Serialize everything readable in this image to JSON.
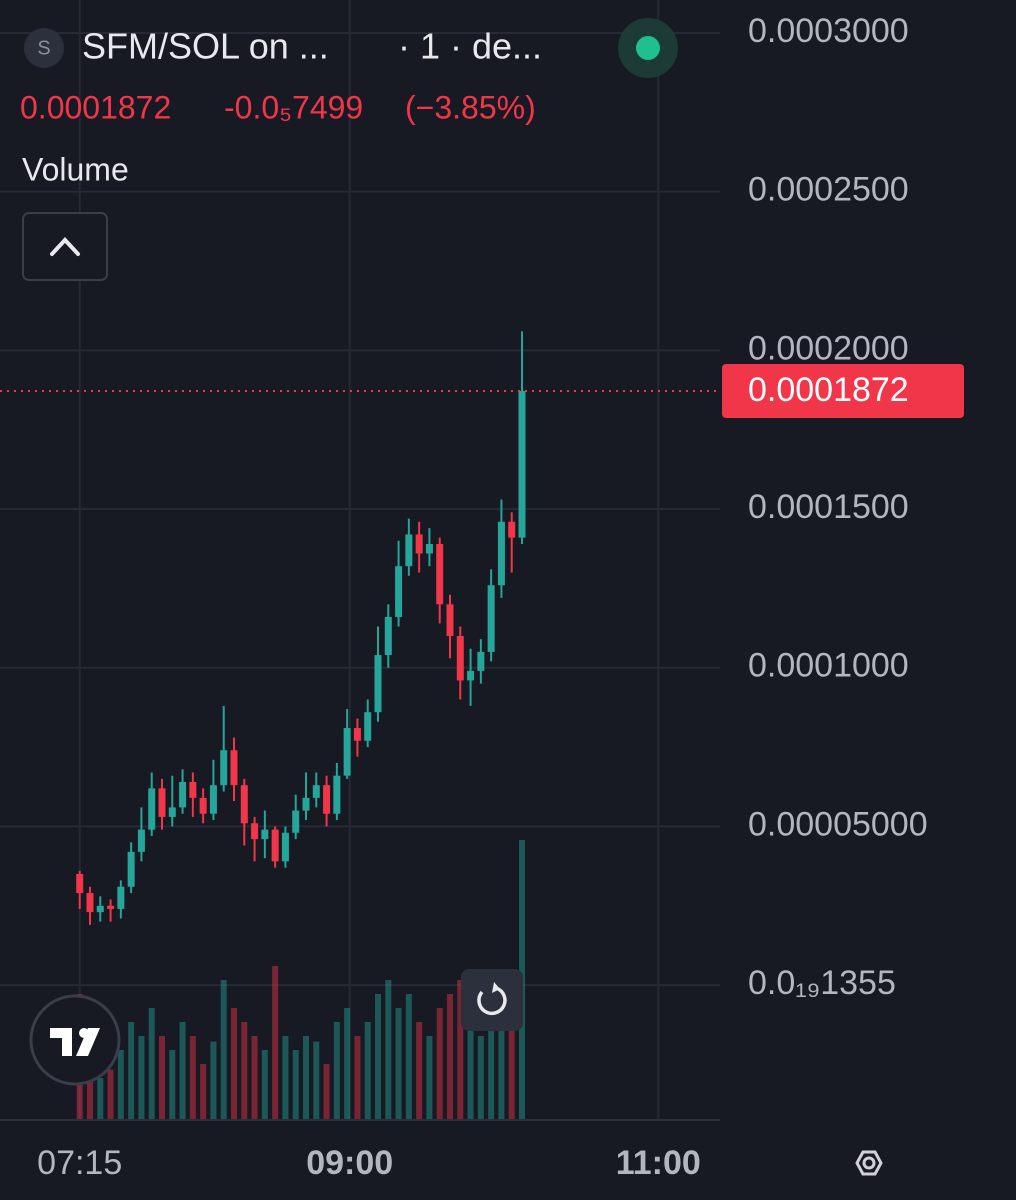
{
  "chart_data": {
    "type": "candlestick",
    "title": "SFM/SOL on ...",
    "interval": "· 1 · de...",
    "symbol_icon": "S",
    "last_price": {
      "value": 0.0001872,
      "label": "0.0001872"
    },
    "change": "-0.0₅7499",
    "change_pct": "(−3.85%)",
    "volume_label": "Volume",
    "up_color": "#26a69a",
    "down_color": "#f2364a",
    "grid": true,
    "x": [
      "07:15",
      "07:19",
      "07:23",
      "07:27",
      "07:31",
      "07:35",
      "07:39",
      "07:43",
      "07:47",
      "07:51",
      "07:55",
      "07:59",
      "08:03",
      "08:07",
      "08:11",
      "08:15",
      "08:19",
      "08:23",
      "08:27",
      "08:31",
      "08:35",
      "08:39",
      "08:43",
      "08:47",
      "08:51",
      "08:55",
      "08:59",
      "09:03",
      "09:07",
      "09:11",
      "09:15",
      "09:19",
      "09:23",
      "09:27",
      "09:31",
      "09:35",
      "09:39",
      "09:43",
      "09:47",
      "09:51",
      "09:55",
      "09:59",
      "10:03",
      "10:07"
    ],
    "open": [
      3.5e-05,
      2.9e-05,
      2.3e-05,
      2.5e-05,
      2.4e-05,
      3.1e-05,
      4.2e-05,
      4.9e-05,
      6.2e-05,
      5.3e-05,
      5.6e-05,
      6.4e-05,
      5.9e-05,
      5.4e-05,
      6.3e-05,
      7.4e-05,
      6.3e-05,
      5.1e-05,
      4.6e-05,
      4.9e-05,
      3.9e-05,
      4.8e-05,
      5.5e-05,
      5.9e-05,
      6.3e-05,
      5.4e-05,
      6.6e-05,
      8.1e-05,
      7.7e-05,
      8.6e-05,
      0.000104,
      0.000116,
      0.000132,
      0.000142,
      0.000136,
      0.000139,
      0.00012,
      0.00011,
      9.6e-05,
      9.9e-05,
      0.000105,
      0.000126,
      0.000146,
      0.000141
    ],
    "high": [
      3.6e-05,
      3.1e-05,
      2.8e-05,
      2.7e-05,
      3.3e-05,
      4.5e-05,
      5.6e-05,
      6.7e-05,
      6.5e-05,
      6.6e-05,
      6.8e-05,
      6.7e-05,
      6.2e-05,
      7.1e-05,
      8.8e-05,
      7.8e-05,
      6.5e-05,
      5.3e-05,
      5.5e-05,
      5e-05,
      5e-05,
      6e-05,
      6.7e-05,
      6.7e-05,
      6.6e-05,
      7e-05,
      8.7e-05,
      8.4e-05,
      9e-05,
      0.000113,
      0.00012,
      0.00014,
      0.000147,
      0.000146,
      0.000144,
      0.000141,
      0.000123,
      0.000113,
      0.000106,
      0.000109,
      0.000131,
      0.000153,
      0.000149,
      0.000206
    ],
    "low": [
      2.4e-05,
      1.9e-05,
      2e-05,
      2e-05,
      2.1e-05,
      2.9e-05,
      3.9e-05,
      4.7e-05,
      4.9e-05,
      5e-05,
      5.4e-05,
      5.3e-05,
      5.1e-05,
      5.2e-05,
      6.1e-05,
      5.8e-05,
      4.4e-05,
      3.9e-05,
      4e-05,
      3.7e-05,
      3.7e-05,
      4.6e-05,
      5.2e-05,
      5.6e-05,
      5e-05,
      5.2e-05,
      6.5e-05,
      7.2e-05,
      7.5e-05,
      8.3e-05,
      0.0001,
      0.000113,
      0.000129,
      0.00013,
      0.000132,
      0.000114,
      0.000103,
      9e-05,
      8.8e-05,
      9.5e-05,
      0.000102,
      0.000122,
      0.00013,
      0.000139
    ],
    "close": [
      2.9e-05,
      2.3e-05,
      2.5e-05,
      2.4e-05,
      3.1e-05,
      4.2e-05,
      4.9e-05,
      6.2e-05,
      5.3e-05,
      5.6e-05,
      6.4e-05,
      5.9e-05,
      5.4e-05,
      6.3e-05,
      7.4e-05,
      6.3e-05,
      5.1e-05,
      4.6e-05,
      4.9e-05,
      3.9e-05,
      4.8e-05,
      5.5e-05,
      5.9e-05,
      6.3e-05,
      5.4e-05,
      6.6e-05,
      8.1e-05,
      7.7e-05,
      8.6e-05,
      0.000104,
      0.000116,
      0.000132,
      0.000142,
      0.000136,
      0.000139,
      0.00012,
      0.00011,
      9.6e-05,
      9.9e-05,
      0.000105,
      0.000126,
      0.000146,
      0.000141,
      0.0001872
    ],
    "volume": [
      45,
      20,
      15,
      18,
      25,
      35,
      30,
      40,
      30,
      25,
      35,
      30,
      20,
      28,
      50,
      40,
      35,
      30,
      25,
      55,
      30,
      25,
      30,
      28,
      20,
      35,
      40,
      30,
      35,
      45,
      50,
      40,
      45,
      35,
      30,
      40,
      45,
      50,
      35,
      30,
      45,
      50,
      40,
      100
    ],
    "xlim": [
      "06:44",
      "11:24"
    ],
    "xticks": [
      "07:15",
      "09:00",
      "11:00"
    ],
    "ylim": [
      -4.25e-05,
      0.0003104
    ],
    "yticks": [
      {
        "value": 1.355e-20,
        "label": "0.0₁₉1355"
      },
      {
        "value": 5e-05,
        "label": "0.00005000"
      },
      {
        "value": 0.0001,
        "label": "0.0001000"
      },
      {
        "value": 0.00015,
        "label": "0.0001500"
      },
      {
        "value": 0.0002,
        "label": "0.0002000"
      },
      {
        "value": 0.00025,
        "label": "0.0002500"
      },
      {
        "value": 0.0003,
        "label": "0.0003000"
      }
    ]
  }
}
